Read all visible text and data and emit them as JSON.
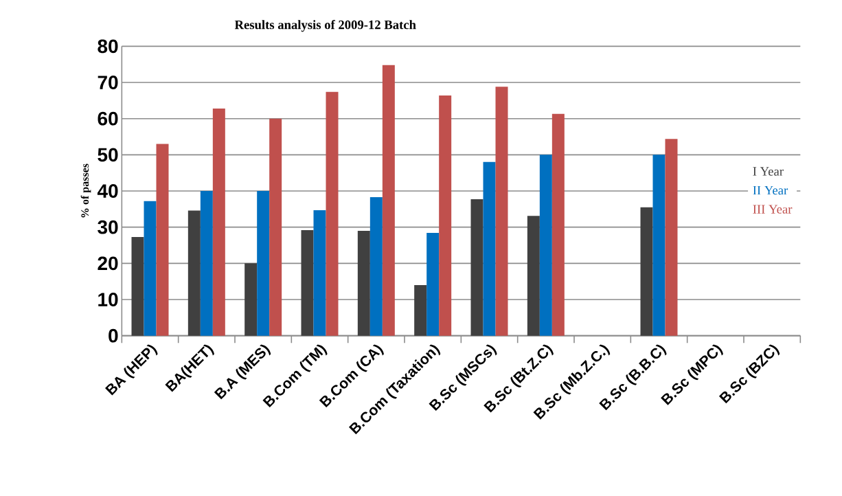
{
  "chart_data": {
    "type": "bar",
    "title": "Results analysis of 2009-12 Batch",
    "ylabel": "% of passes",
    "categories": [
      "BA (HEP)",
      "BA(HET)",
      "B.A (MES)",
      "B.Com (TM)",
      "B.Com (CA)",
      "B.Com (Taxation)",
      "B.Sc (MSCs)",
      "B.Sc (Bt.Z.C)",
      "B.Sc (Mb.Z.C.)",
      "B.Sc (B.B.C)",
      "B.Sc (MPC)",
      "B.Sc (BZC)"
    ],
    "series": [
      {
        "name": "I Year",
        "color": "#404040",
        "values": [
          27.3,
          34.6,
          20,
          29.2,
          29,
          14,
          37.7,
          33.1,
          null,
          35.5,
          null,
          null
        ]
      },
      {
        "name": "II Year",
        "color": "#0070c0",
        "values": [
          37.2,
          40,
          40,
          34.7,
          38.3,
          28.4,
          48,
          50,
          null,
          50,
          null,
          null
        ]
      },
      {
        "name": "III Year",
        "color": "#c0504d",
        "values": [
          53,
          62.8,
          60,
          67.4,
          74.8,
          66.4,
          68.8,
          61.3,
          null,
          54.4,
          null,
          null
        ]
      }
    ],
    "ylim": [
      0,
      80
    ],
    "yticks": [
      0,
      10,
      20,
      30,
      40,
      50,
      60,
      70,
      80
    ],
    "grid": "y",
    "legend": "right"
  }
}
